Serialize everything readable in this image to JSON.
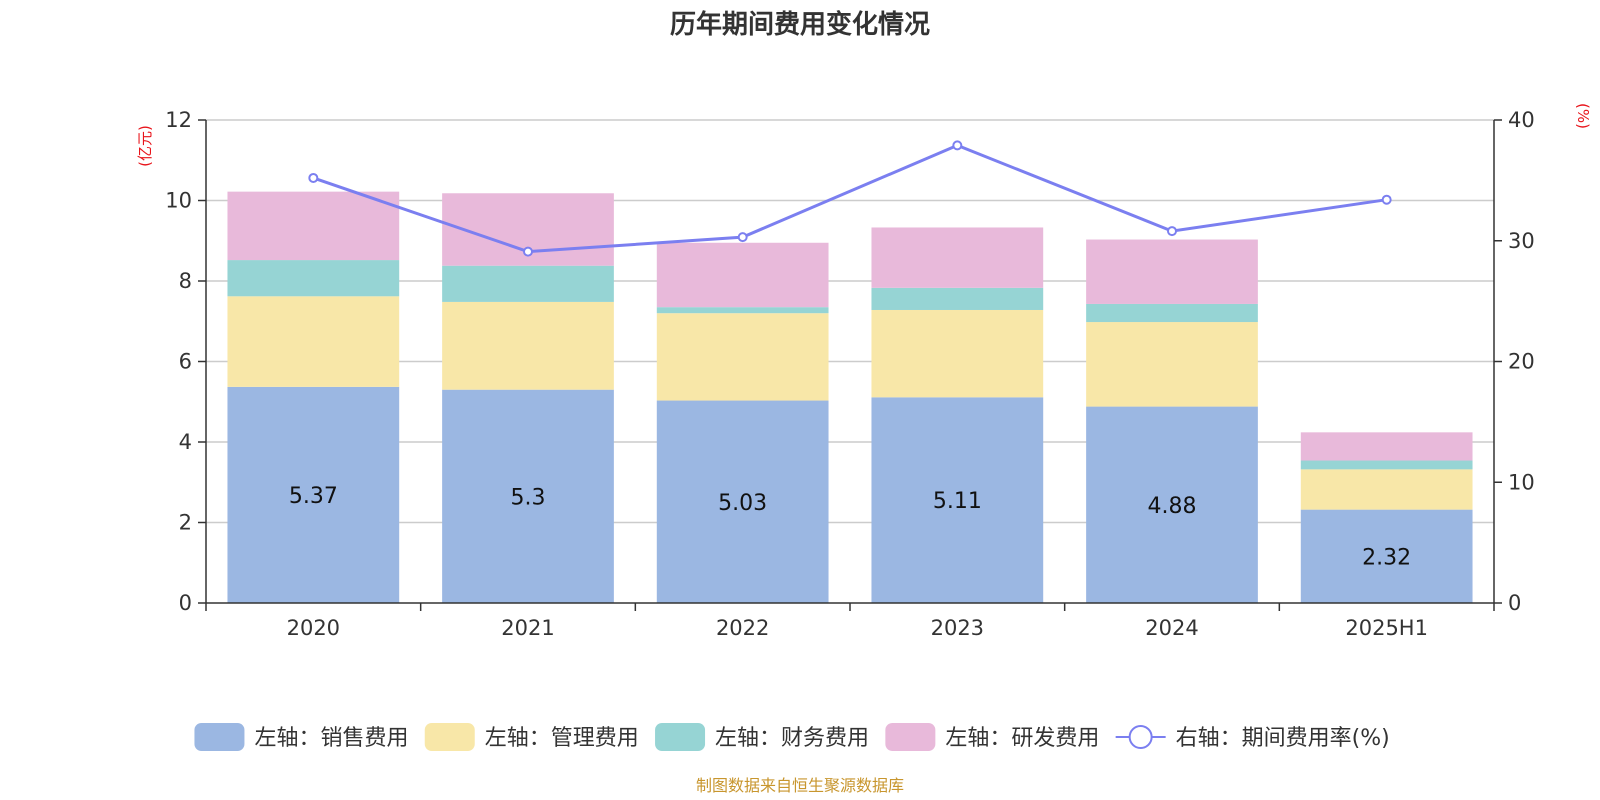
{
  "chart_data": {
    "type": "bar",
    "stacked": true,
    "title": "历年期间费用变化情况",
    "categories": [
      "2020",
      "2021",
      "2022",
      "2023",
      "2024",
      "2025H1"
    ],
    "left_axis": {
      "unit": "(亿元)",
      "range": [
        0,
        12
      ],
      "ticks": [
        "0",
        "2",
        "4",
        "6",
        "8",
        "10",
        "12"
      ]
    },
    "right_axis": {
      "unit": "(%)",
      "range": [
        0,
        40
      ],
      "ticks": [
        "0",
        "10",
        "20",
        "30",
        "40"
      ]
    },
    "series": [
      {
        "name": "左轴：销售费用",
        "kind": "bar",
        "axis": "left",
        "color": "#9bb7e2",
        "values": [
          5.37,
          5.3,
          5.03,
          5.11,
          4.88,
          2.32
        ],
        "labels": [
          "5.37",
          "5.3",
          "5.03",
          "5.11",
          "4.88",
          "2.32"
        ]
      },
      {
        "name": "左轴：管理费用",
        "kind": "bar",
        "axis": "left",
        "color": "#f8e7a8",
        "values": [
          2.25,
          2.18,
          2.17,
          2.17,
          2.1,
          1.0
        ]
      },
      {
        "name": "左轴：财务费用",
        "kind": "bar",
        "axis": "left",
        "color": "#96d4d4",
        "values": [
          0.9,
          0.9,
          0.15,
          0.55,
          0.45,
          0.22
        ]
      },
      {
        "name": "左轴：研发费用",
        "kind": "bar",
        "axis": "left",
        "color": "#e8b9da",
        "values": [
          1.7,
          1.8,
          1.6,
          1.5,
          1.6,
          0.7
        ]
      },
      {
        "name": "右轴：期间费用率(%)",
        "kind": "line",
        "axis": "right",
        "color": "#7b7ff0",
        "values": [
          35.2,
          29.1,
          30.3,
          37.9,
          30.8,
          33.4
        ]
      }
    ],
    "grid": true,
    "legend": "bottom",
    "source": "制图数据来自恒生聚源数据库"
  }
}
